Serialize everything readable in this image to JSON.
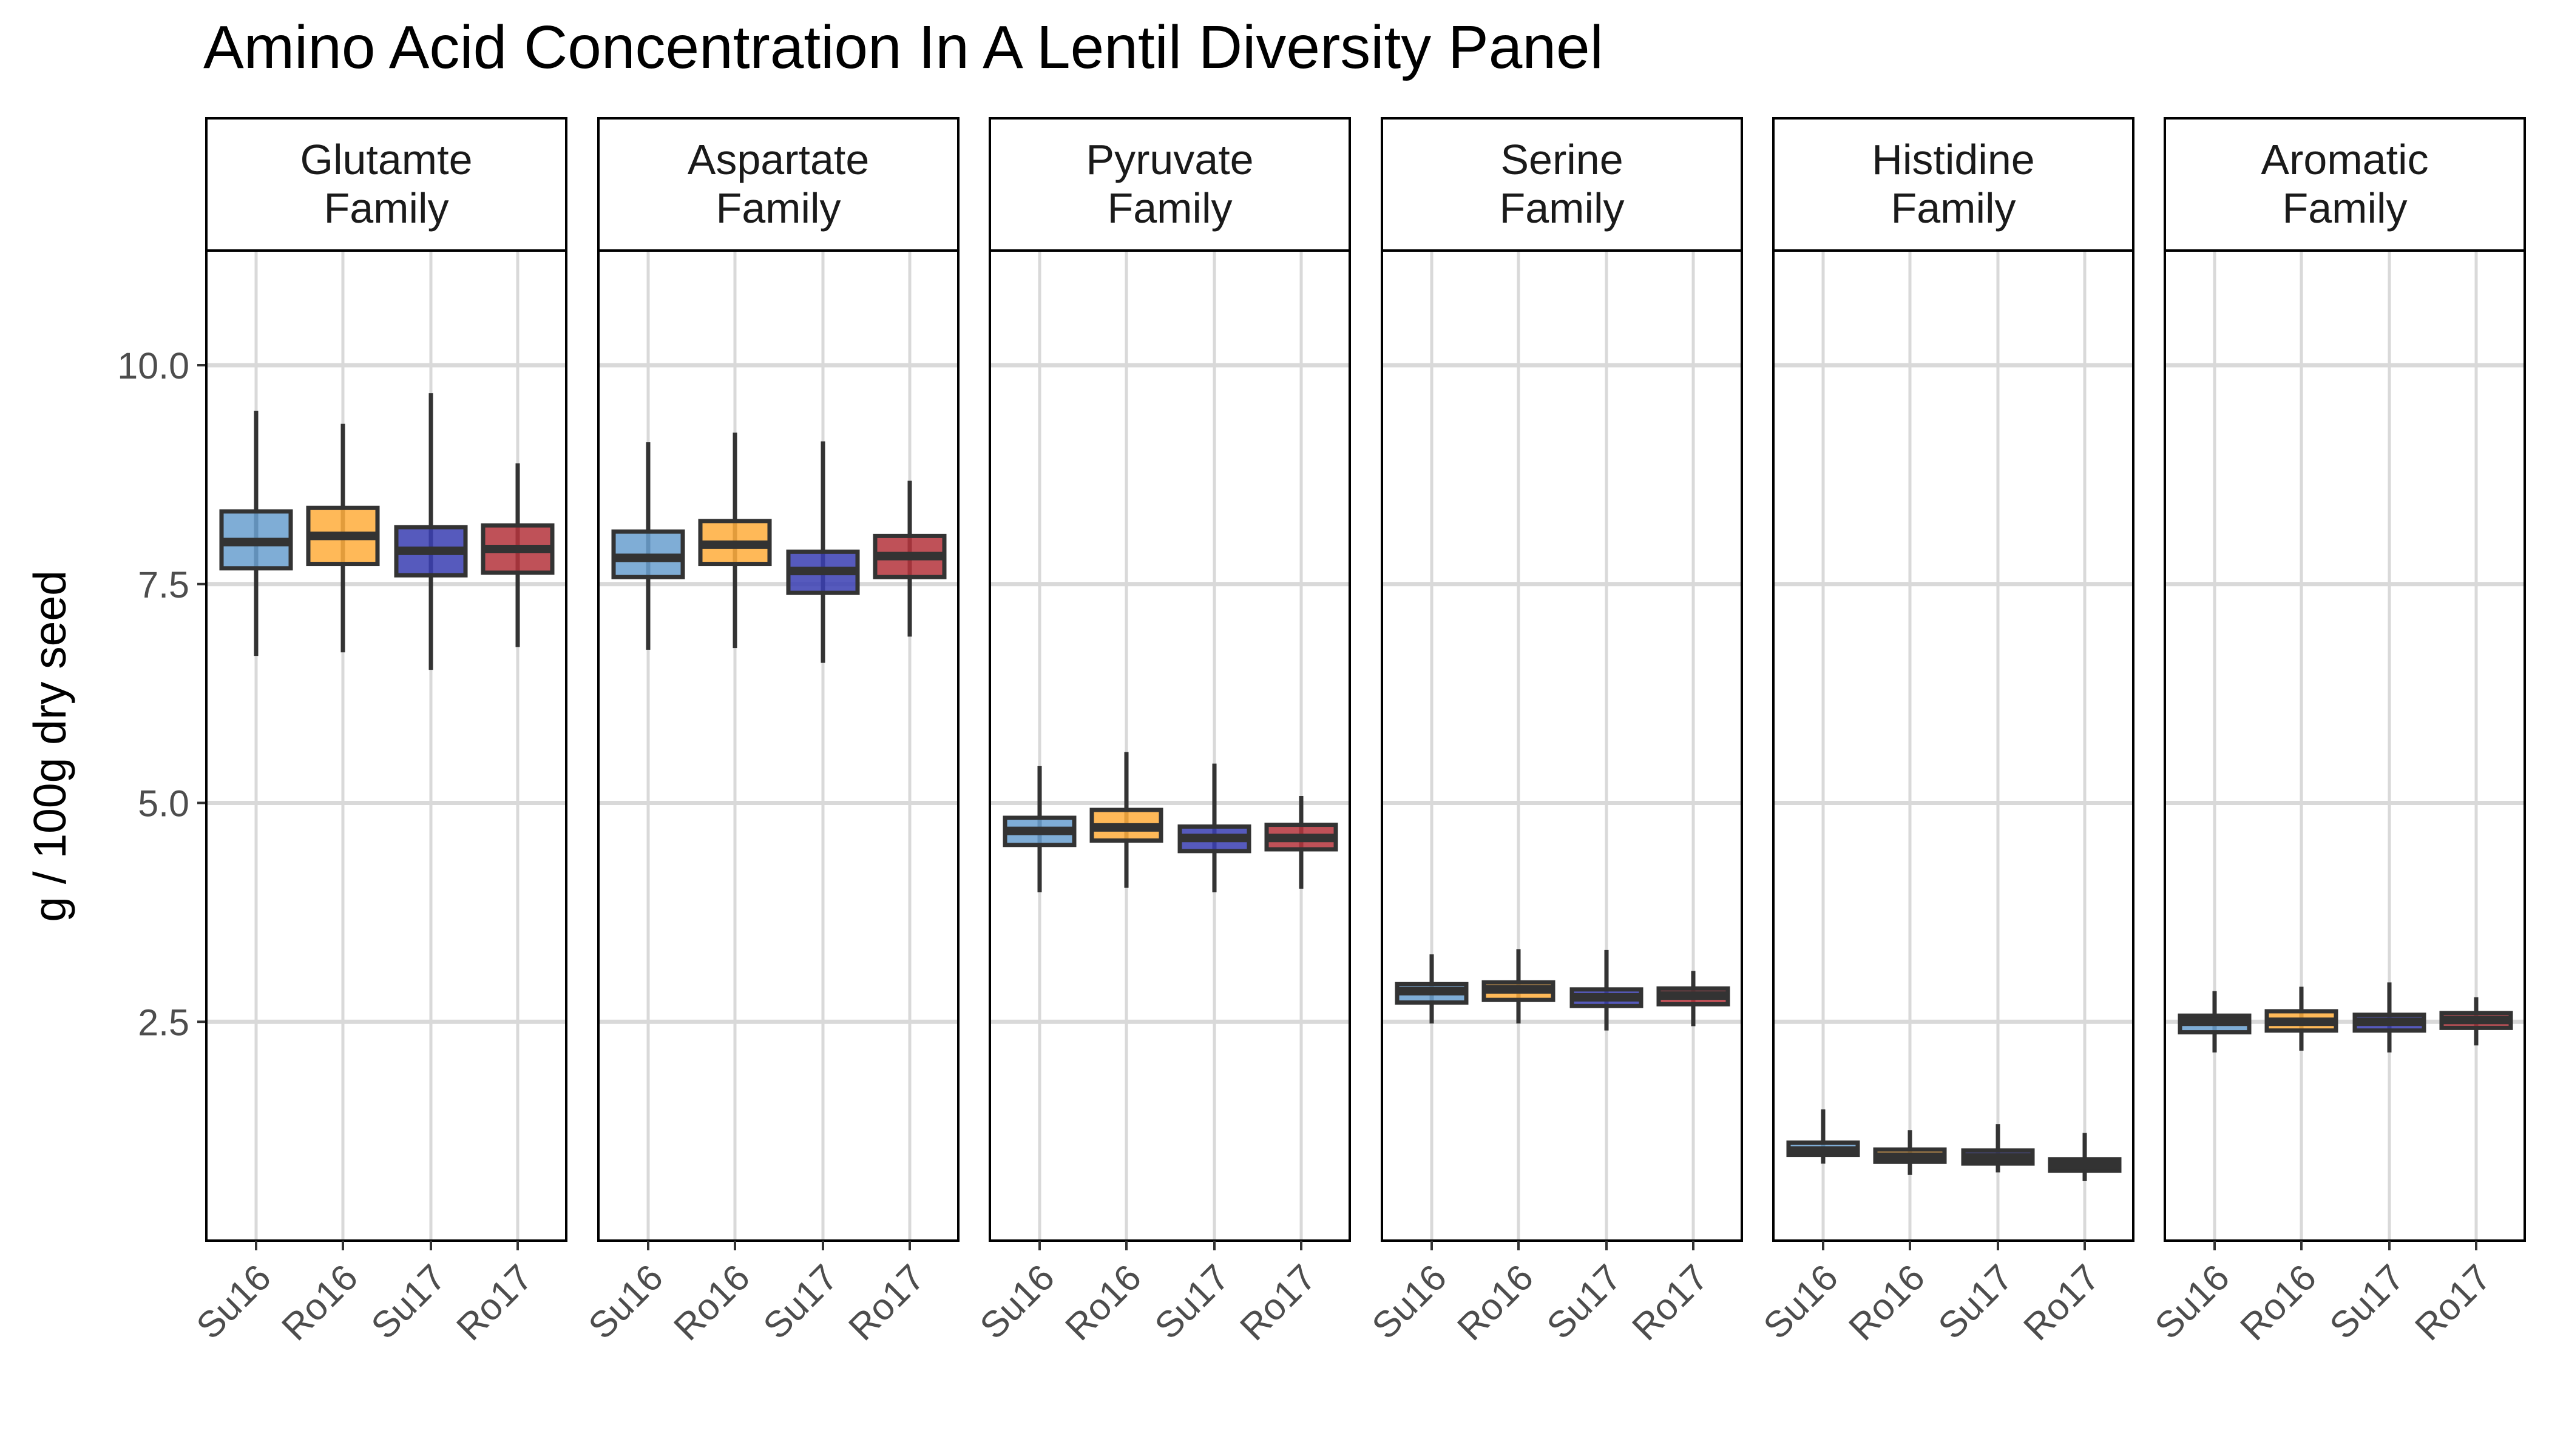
{
  "chart_data": {
    "type": "boxplot",
    "title": "Amino Acid Concentration In A Lentil Diversity Panel",
    "ylabel": "g / 100g dry seed",
    "xlabel": "",
    "ylim": [
      0,
      11.3
    ],
    "yticks": [
      2.5,
      5.0,
      7.5,
      10.0
    ],
    "ytick_labels": [
      "2.5",
      "5.0",
      "7.5",
      "10.0"
    ],
    "categories": [
      "Su16",
      "Ro16",
      "Su17",
      "Ro17"
    ],
    "grid": true,
    "legend": "none",
    "facet_strip_fill": "#ffffff",
    "grid_color": "#d9d9d9",
    "box_outline_color": "#333333",
    "whisker_color": "#333333",
    "median_color": "#333333",
    "colors": {
      "Su16": "#6a9fcf",
      "Ro16": "#ffae3d",
      "Su17": "#3a3fb2",
      "Ro17": "#b5343c"
    },
    "facets": [
      {
        "name": "Glutamte\nFamily",
        "lines": [
          "Glutamte",
          "Family"
        ],
        "boxes": [
          {
            "group": "Su16",
            "min": 6.68,
            "q1": 7.68,
            "median": 7.98,
            "q3": 8.33,
            "max": 9.48,
            "fill": "#6a9fcf"
          },
          {
            "group": "Ro16",
            "min": 6.72,
            "q1": 7.73,
            "median": 8.05,
            "q3": 8.37,
            "max": 9.33,
            "fill": "#ffae3d"
          },
          {
            "group": "Su17",
            "min": 6.52,
            "q1": 7.6,
            "median": 7.88,
            "q3": 8.15,
            "max": 9.68,
            "fill": "#3a3fb2"
          },
          {
            "group": "Ro17",
            "min": 6.78,
            "q1": 7.63,
            "median": 7.9,
            "q3": 8.17,
            "max": 8.88,
            "fill": "#b5343c"
          }
        ]
      },
      {
        "name": "Aspartate\nFamily",
        "lines": [
          "Aspartate",
          "Family"
        ],
        "boxes": [
          {
            "group": "Su16",
            "min": 6.75,
            "q1": 7.58,
            "median": 7.8,
            "q3": 8.1,
            "max": 9.12,
            "fill": "#6a9fcf"
          },
          {
            "group": "Ro16",
            "min": 6.77,
            "q1": 7.73,
            "median": 7.95,
            "q3": 8.22,
            "max": 9.23,
            "fill": "#ffae3d"
          },
          {
            "group": "Su17",
            "min": 6.6,
            "q1": 7.4,
            "median": 7.65,
            "q3": 7.87,
            "max": 9.13,
            "fill": "#3a3fb2"
          },
          {
            "group": "Ro17",
            "min": 6.9,
            "q1": 7.58,
            "median": 7.82,
            "q3": 8.05,
            "max": 8.68,
            "fill": "#b5343c"
          }
        ]
      },
      {
        "name": "Pyruvate\nFamily",
        "lines": [
          "Pyruvate",
          "Family"
        ],
        "boxes": [
          {
            "group": "Su16",
            "min": 3.98,
            "q1": 4.52,
            "median": 4.68,
            "q3": 4.83,
            "max": 5.42,
            "fill": "#6a9fcf"
          },
          {
            "group": "Ro16",
            "min": 4.03,
            "q1": 4.57,
            "median": 4.72,
            "q3": 4.92,
            "max": 5.58,
            "fill": "#ffae3d"
          },
          {
            "group": "Su17",
            "min": 3.98,
            "q1": 4.45,
            "median": 4.6,
            "q3": 4.73,
            "max": 5.45,
            "fill": "#3a3fb2"
          },
          {
            "group": "Ro17",
            "min": 4.02,
            "q1": 4.47,
            "median": 4.6,
            "q3": 4.75,
            "max": 5.08,
            "fill": "#b5343c"
          }
        ]
      },
      {
        "name": "Serine\nFamily",
        "lines": [
          "Serine",
          "Family"
        ],
        "boxes": [
          {
            "group": "Su16",
            "min": 2.48,
            "q1": 2.72,
            "median": 2.85,
            "q3": 2.93,
            "max": 3.27,
            "fill": "#6a9fcf"
          },
          {
            "group": "Ro16",
            "min": 2.48,
            "q1": 2.75,
            "median": 2.87,
            "q3": 2.95,
            "max": 3.33,
            "fill": "#ffae3d"
          },
          {
            "group": "Su17",
            "min": 2.4,
            "q1": 2.68,
            "median": 2.78,
            "q3": 2.87,
            "max": 3.32,
            "fill": "#3a3fb2"
          },
          {
            "group": "Ro17",
            "min": 2.45,
            "q1": 2.7,
            "median": 2.8,
            "q3": 2.88,
            "max": 3.08,
            "fill": "#b5343c"
          }
        ]
      },
      {
        "name": "Histidine\nFamily",
        "lines": [
          "Histidine",
          "Family"
        ],
        "boxes": [
          {
            "group": "Su16",
            "min": 0.88,
            "q1": 0.98,
            "median": 1.03,
            "q3": 1.12,
            "max": 1.5,
            "fill": "#6a9fcf"
          },
          {
            "group": "Ro16",
            "min": 0.75,
            "q1": 0.9,
            "median": 0.96,
            "q3": 1.04,
            "max": 1.26,
            "fill": "#ffae3d"
          },
          {
            "group": "Su17",
            "min": 0.78,
            "q1": 0.88,
            "median": 0.95,
            "q3": 1.03,
            "max": 1.33,
            "fill": "#3a3fb2"
          },
          {
            "group": "Ro17",
            "min": 0.68,
            "q1": 0.8,
            "median": 0.86,
            "q3": 0.93,
            "max": 1.23,
            "fill": "#b5343c"
          }
        ]
      },
      {
        "name": "Aromatic\nFamily",
        "lines": [
          "Aromatic",
          "Family"
        ],
        "boxes": [
          {
            "group": "Su16",
            "min": 2.15,
            "q1": 2.38,
            "median": 2.5,
            "q3": 2.57,
            "max": 2.85,
            "fill": "#6a9fcf"
          },
          {
            "group": "Ro16",
            "min": 2.17,
            "q1": 2.4,
            "median": 2.5,
            "q3": 2.62,
            "max": 2.9,
            "fill": "#ffae3d"
          },
          {
            "group": "Su17",
            "min": 2.15,
            "q1": 2.4,
            "median": 2.5,
            "q3": 2.58,
            "max": 2.95,
            "fill": "#3a3fb2"
          },
          {
            "group": "Ro17",
            "min": 2.23,
            "q1": 2.43,
            "median": 2.52,
            "q3": 2.6,
            "max": 2.78,
            "fill": "#b5343c"
          }
        ]
      }
    ]
  }
}
